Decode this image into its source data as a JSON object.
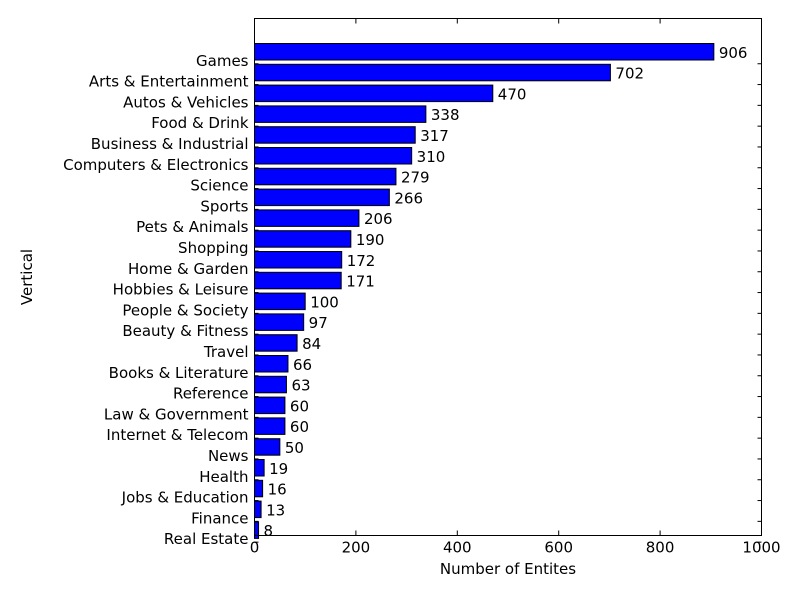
{
  "chart_data": {
    "type": "bar",
    "orientation": "horizontal",
    "xlabel": "Number of Entites",
    "ylabel": "Vertical",
    "xlim": [
      0,
      1000
    ],
    "xticks": [
      0,
      200,
      400,
      600,
      800,
      1000
    ],
    "grid": false,
    "legend": "none",
    "bar_color": "#0000ff",
    "edge_color": "#000000",
    "categories": [
      "Games",
      "Arts & Entertainment",
      "Autos & Vehicles",
      "Food & Drink",
      "Business & Industrial",
      "Computers & Electronics",
      "Science",
      "Sports",
      "Pets & Animals",
      "Shopping",
      "Home & Garden",
      "Hobbies & Leisure",
      "People & Society",
      "Beauty & Fitness",
      "Travel",
      "Books & Literature",
      "Reference",
      "Law & Government",
      "Internet & Telecom",
      "News",
      "Health",
      "Jobs & Education",
      "Finance",
      "Real Estate"
    ],
    "values": [
      906,
      702,
      470,
      338,
      317,
      310,
      279,
      266,
      206,
      190,
      172,
      171,
      100,
      97,
      84,
      66,
      63,
      60,
      60,
      50,
      19,
      16,
      13,
      8
    ]
  }
}
